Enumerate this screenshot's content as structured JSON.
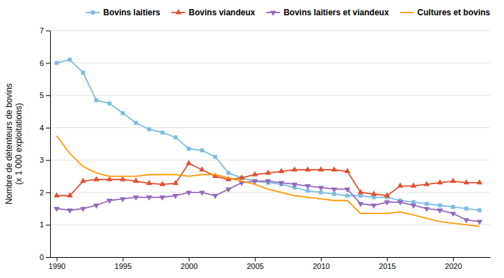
{
  "chart_data": {
    "type": "line",
    "y_label": "Nombre de détenteurs de bovins\n(x 1 000 exploitations)",
    "x": [
      1990,
      1991,
      1992,
      1993,
      1994,
      1995,
      1996,
      1997,
      1998,
      1999,
      2000,
      2001,
      2002,
      2003,
      2004,
      2005,
      2006,
      2007,
      2008,
      2009,
      2010,
      2011,
      2012,
      2013,
      2014,
      2015,
      2016,
      2017,
      2018,
      2019,
      2020,
      2021,
      2022
    ],
    "xlim": [
      1989.5,
      2022.8
    ],
    "xticks": [
      1990,
      1995,
      2000,
      2005,
      2010,
      2015,
      2020
    ],
    "ylim": [
      0,
      7
    ],
    "yticks": [
      0,
      1,
      2,
      3,
      4,
      5,
      6,
      7
    ],
    "grid": "y",
    "legend": "upper-right",
    "series": [
      {
        "name": "Bovins laitiers",
        "color": "#7bbce0",
        "marker": "square",
        "values": [
          6.0,
          6.1,
          5.7,
          4.85,
          4.75,
          4.45,
          4.15,
          3.95,
          3.85,
          3.7,
          3.35,
          3.3,
          3.1,
          2.6,
          2.45,
          2.35,
          2.3,
          2.25,
          2.15,
          2.05,
          2.0,
          1.95,
          1.9,
          1.9,
          1.85,
          1.85,
          1.75,
          1.7,
          1.65,
          1.6,
          1.55,
          1.5,
          1.45
        ]
      },
      {
        "name": "Bovins viandeux",
        "color": "#e05030",
        "marker": "triangle-up",
        "values": [
          1.9,
          1.9,
          2.35,
          2.4,
          2.4,
          2.4,
          2.35,
          2.28,
          2.25,
          2.28,
          2.9,
          2.7,
          2.5,
          2.4,
          2.45,
          2.55,
          2.6,
          2.65,
          2.7,
          2.7,
          2.7,
          2.7,
          2.65,
          2.0,
          1.95,
          1.9,
          2.2,
          2.2,
          2.25,
          2.3,
          2.35,
          2.3,
          2.3
        ]
      },
      {
        "name": "Bovins laitiers et viandeux",
        "color": "#9467bd",
        "marker": "triangle-down",
        "values": [
          1.5,
          1.45,
          1.5,
          1.6,
          1.75,
          1.8,
          1.85,
          1.85,
          1.85,
          1.9,
          2.0,
          2.0,
          1.9,
          2.1,
          2.3,
          2.35,
          2.35,
          2.3,
          2.25,
          2.2,
          2.15,
          2.1,
          2.1,
          1.65,
          1.6,
          1.7,
          1.7,
          1.6,
          1.5,
          1.45,
          1.35,
          1.15,
          1.1
        ]
      },
      {
        "name": "Cultures et bovins",
        "color": "#ff9900",
        "marker": "none",
        "values": [
          3.75,
          3.2,
          2.8,
          2.6,
          2.5,
          2.5,
          2.5,
          2.55,
          2.55,
          2.55,
          2.5,
          2.55,
          2.55,
          2.45,
          2.35,
          2.25,
          2.1,
          2.0,
          1.9,
          1.85,
          1.8,
          1.75,
          1.75,
          1.35,
          1.35,
          1.35,
          1.4,
          1.3,
          1.2,
          1.1,
          1.05,
          1.0,
          0.95
        ]
      }
    ]
  }
}
